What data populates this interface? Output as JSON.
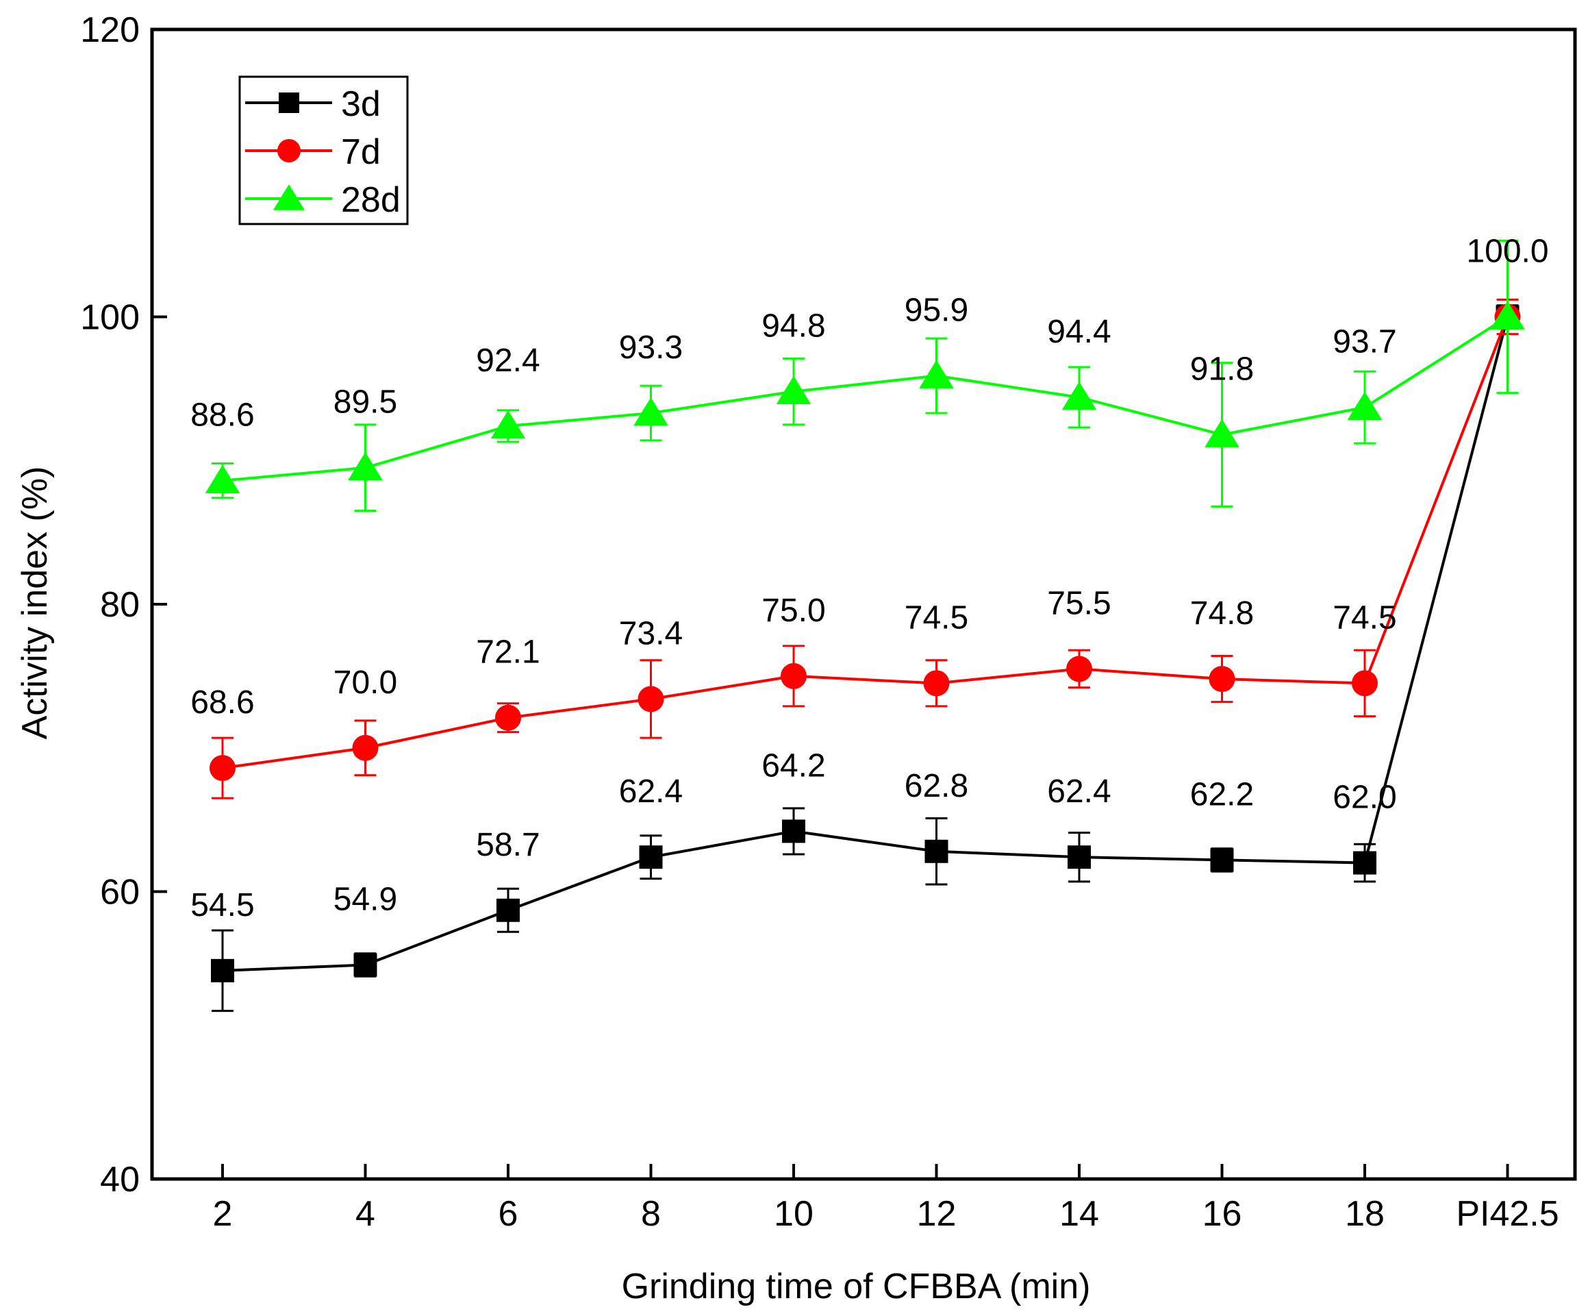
{
  "chart_data": {
    "type": "line",
    "title": "",
    "xlabel": "Grinding time of CFBBA (min)",
    "ylabel": "Activity index (%)",
    "categories": [
      "2",
      "4",
      "6",
      "8",
      "10",
      "12",
      "14",
      "16",
      "18",
      "PI42.5"
    ],
    "ylim": [
      40,
      120
    ],
    "yticks": [
      40,
      60,
      80,
      100,
      120
    ],
    "grid": false,
    "legend": "top-left",
    "series": [
      {
        "name": "3d",
        "color": "#000000",
        "marker": "square",
        "values": [
          54.5,
          54.9,
          58.7,
          62.4,
          64.2,
          62.8,
          62.4,
          62.2,
          62.0,
          100.0
        ],
        "errors": [
          2.8,
          0.8,
          1.5,
          1.5,
          1.6,
          2.3,
          1.7,
          0.8,
          1.3,
          0.8
        ],
        "labels": [
          "54.5",
          "54.9",
          "58.7",
          "62.4",
          "64.2",
          "62.8",
          "62.4",
          "62.2",
          "62.0",
          ""
        ]
      },
      {
        "name": "7d",
        "color": "#ff0000",
        "marker": "circle",
        "values": [
          68.6,
          70.0,
          72.1,
          73.4,
          75.0,
          74.5,
          75.5,
          74.8,
          74.5,
          100.0
        ],
        "errors": [
          2.1,
          1.9,
          1.0,
          2.7,
          2.1,
          1.6,
          1.3,
          1.6,
          2.3,
          1.2
        ],
        "labels": [
          "68.6",
          "70.0",
          "72.1",
          "73.4",
          "75.0",
          "74.5",
          "75.5",
          "74.8",
          "74.5",
          "100.0"
        ]
      },
      {
        "name": "28d",
        "color": "#00ff00",
        "marker": "triangle",
        "values": [
          88.6,
          89.5,
          92.4,
          93.3,
          94.8,
          95.9,
          94.4,
          91.8,
          93.7,
          100.0
        ],
        "errors": [
          1.2,
          3.0,
          1.1,
          1.9,
          2.3,
          2.6,
          2.1,
          5.0,
          2.5,
          5.3
        ],
        "labels": [
          "88.6",
          "89.5",
          "92.4",
          "93.3",
          "94.8",
          "95.9",
          "94.4",
          "91.8",
          "93.7",
          ""
        ]
      }
    ]
  }
}
